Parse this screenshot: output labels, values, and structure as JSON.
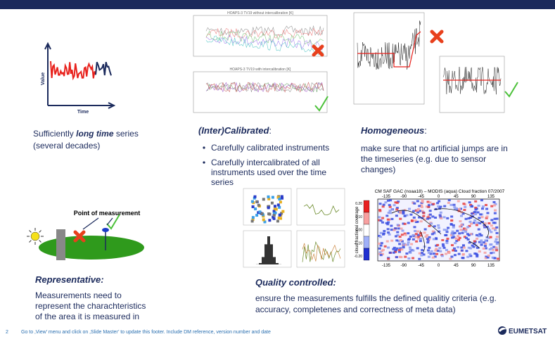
{
  "long_time": {
    "text_parts": [
      "Sufficiently ",
      "long time",
      " series"
    ],
    "line2": "(several decades)",
    "icon": {
      "y_label": "Value",
      "x_label": "Time"
    }
  },
  "calibrated": {
    "title": "(Inter)Calibrated",
    "title_suffix": ":",
    "bullets": [
      [
        "Carefully calibrated instruments"
      ],
      [
        "Carefully intercalibrated of all",
        "instruments used over the time",
        "series"
      ]
    ],
    "figure_titles": [
      "HOAPS-3 TV19 without intercalibration [K]",
      "HOAPS-3 TV19 with intercalibration [K]"
    ]
  },
  "homogeneous": {
    "title": "Homogeneous",
    "title_suffix": ":",
    "lines": [
      "make sure that no artificial jumps are in",
      "the timeseries (e.g. due to sensor",
      "changes)"
    ]
  },
  "representative": {
    "title": "Representative:",
    "label": "Point of measurement",
    "lines": [
      "Measurements need to",
      "represent the charachteristics",
      "of the area it is measured in"
    ]
  },
  "quality": {
    "title": "Quality controlled:",
    "lines": [
      "ensure the measurements fulfills the defined qualitiy criteria (e.g.",
      "accuracy, completenes and correctness of meta data)"
    ],
    "map": {
      "title": "CM SAF GAC (noaa18) – MODIS (aqua) Cloud fraction 07/2007",
      "lon_ticks": [
        "-135",
        "-90",
        "-45",
        "0",
        "45",
        "90",
        "135"
      ],
      "colorbar_label": "cloud fractional coverage",
      "colorbar_ticks": [
        "0.20",
        "0.10",
        "0.00",
        "-0.10",
        "-0.20"
      ]
    }
  },
  "footer": {
    "page": "2",
    "note": "Go to ‚View’ menu and click on ‚Slide Master’ to update this footer. Include DM reference, version number and date",
    "logo": "EUMETSAT"
  }
}
